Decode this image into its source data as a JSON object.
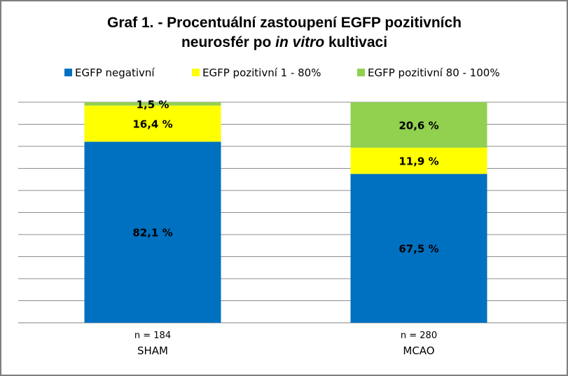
{
  "chart_data": {
    "type": "bar",
    "stacked": true,
    "title_parts": [
      {
        "text": "Graf 1. - Procentuální zastoupení EGFP pozitivních",
        "italic": false
      },
      {
        "text": "neurosfér po ",
        "italic": false
      },
      {
        "text": "in vitro",
        "italic": true
      },
      {
        "text": " kultivaci",
        "italic": false
      }
    ],
    "categories": [
      "SHAM",
      "MCAO"
    ],
    "sample_sizes": [
      "n = 184",
      "n = 280"
    ],
    "ylim": [
      0,
      100
    ],
    "grid": true,
    "legend_position": "top",
    "series": [
      {
        "name": "EGFP negativní",
        "color": "#0070C0",
        "values": [
          82.1,
          67.5
        ],
        "labels": [
          "82,1 %",
          "67,5 %"
        ]
      },
      {
        "name": "EGFP pozitivní 1 - 80%",
        "color": "#FFFF00",
        "values": [
          16.4,
          11.9
        ],
        "labels": [
          "16,4 %",
          "11,9 %"
        ]
      },
      {
        "name": "EGFP pozitivní 80 - 100%",
        "color": "#92D050",
        "values": [
          1.5,
          20.6
        ],
        "labels": [
          "1,5 %",
          "20,6 %"
        ]
      }
    ]
  }
}
